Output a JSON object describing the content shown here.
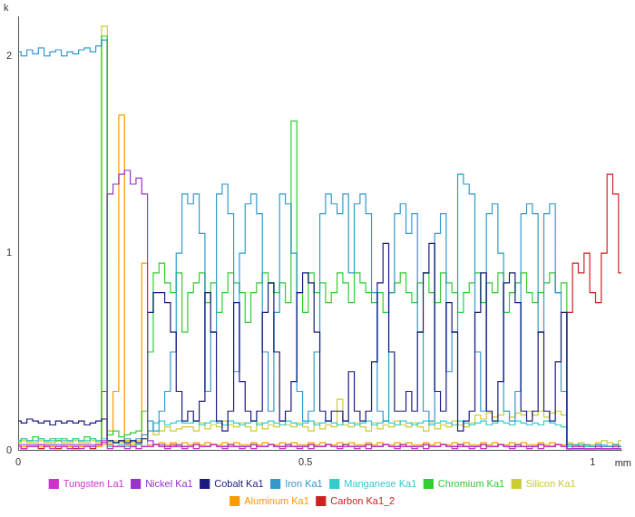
{
  "chart_data": {
    "type": "line",
    "line_style": "steps",
    "marker": "none",
    "x_label": "mm",
    "y_label": "k",
    "xlim": [
      0,
      1.05
    ],
    "xticks": [
      0,
      0.5,
      1
    ],
    "ylim": [
      0,
      2.2
    ],
    "yticks": [
      0,
      1,
      2
    ],
    "grid": false,
    "legend": "bottom",
    "x": [
      0,
      0.01,
      0.02,
      0.03,
      0.04,
      0.05,
      0.06,
      0.07,
      0.08,
      0.09,
      0.1,
      0.11,
      0.12,
      0.13,
      0.14,
      0.15,
      0.16,
      0.17,
      0.18,
      0.19,
      0.2,
      0.21,
      0.22,
      0.23,
      0.24,
      0.25,
      0.26,
      0.27,
      0.28,
      0.29,
      0.3,
      0.31,
      0.32,
      0.33,
      0.34,
      0.35,
      0.36,
      0.37,
      0.38,
      0.39,
      0.4,
      0.41,
      0.42,
      0.43,
      0.44,
      0.45,
      0.46,
      0.47,
      0.48,
      0.49,
      0.5,
      0.51,
      0.52,
      0.53,
      0.54,
      0.55,
      0.56,
      0.57,
      0.58,
      0.59,
      0.6,
      0.61,
      0.62,
      0.63,
      0.64,
      0.65,
      0.66,
      0.67,
      0.68,
      0.69,
      0.7,
      0.71,
      0.72,
      0.73,
      0.74,
      0.75,
      0.76,
      0.77,
      0.78,
      0.79,
      0.8,
      0.81,
      0.82,
      0.83,
      0.84,
      0.85,
      0.86,
      0.87,
      0.88,
      0.89,
      0.9,
      0.91,
      0.92,
      0.93,
      0.94,
      0.95,
      0.96,
      0.97,
      0.98,
      0.99,
      1,
      1.01,
      1.02,
      1.03,
      1.04,
      1.05
    ],
    "series": [
      {
        "name": "Tungsten La1",
        "color": "#cc33cc",
        "values": [
          0.02,
          0.01,
          0.02,
          0.02,
          0.03,
          0.02,
          0.01,
          0.02,
          0.02,
          0.01,
          0.02,
          0.01,
          0.02,
          0.02,
          0.03,
          0.05,
          0.01,
          0.02,
          0.02,
          0.01,
          0.02,
          0.01,
          0.02,
          0.02,
          0.03,
          0.02,
          0.01,
          0.02,
          0.02,
          0.01,
          0.02,
          0.01,
          0.02,
          0.02,
          0.03,
          0.02,
          0.01,
          0.02,
          0.02,
          0.01,
          0.02,
          0.01,
          0.02,
          0.02,
          0.03,
          0.02,
          0.01,
          0.02,
          0.02,
          0.01,
          0.02,
          0.01,
          0.02,
          0.02,
          0.03,
          0.02,
          0.01,
          0.02,
          0.02,
          0.01,
          0.02,
          0.01,
          0.02,
          0.02,
          0.03,
          0.02,
          0.01,
          0.02,
          0.02,
          0.01,
          0.02,
          0.01,
          0.02,
          0.02,
          0.03,
          0.02,
          0.01,
          0.02,
          0.02,
          0.01,
          0.02,
          0.01,
          0.02,
          0.02,
          0.03,
          0.02,
          0.01,
          0.02,
          0.02,
          0.01,
          0.02,
          0.01,
          0.02,
          0.02,
          0.03,
          0.02,
          0.01,
          0.02,
          0.02,
          0.01,
          0.01,
          0.02,
          0.01,
          0.01,
          0.02,
          0.01
        ]
      },
      {
        "name": "Nickel Ka1",
        "color": "#9933cc",
        "values": [
          0.03,
          0.03,
          0.03,
          0.03,
          0.03,
          0.03,
          0.03,
          0.03,
          0.03,
          0.03,
          0.03,
          0.03,
          0.03,
          0.03,
          0.03,
          0.04,
          1.3,
          1.35,
          1.4,
          1.42,
          1.35,
          1.38,
          1.3,
          0.05,
          0.03,
          0.03,
          0.02,
          0.02,
          0.03,
          0.02,
          0.02,
          0.03,
          0.02,
          0.02,
          0.03,
          0.02,
          0.02,
          0.03,
          0.02,
          0.02,
          0.02,
          0.03,
          0.02,
          0.02,
          0.03,
          0.02,
          0.02,
          0.03,
          0.02,
          0.02,
          0.02,
          0.03,
          0.02,
          0.02,
          0.03,
          0.02,
          0.02,
          0.03,
          0.02,
          0.02,
          0.02,
          0.03,
          0.02,
          0.02,
          0.03,
          0.02,
          0.02,
          0.03,
          0.02,
          0.02,
          0.02,
          0.03,
          0.02,
          0.02,
          0.03,
          0.02,
          0.02,
          0.03,
          0.02,
          0.02,
          0.02,
          0.03,
          0.02,
          0.02,
          0.03,
          0.02,
          0.02,
          0.03,
          0.02,
          0.02,
          0.02,
          0.03,
          0.02,
          0.02,
          0.03,
          0.02,
          0.01,
          0.01,
          0.01,
          0.01,
          0.01,
          0.01,
          0.01,
          0.01,
          0.01,
          0.01
        ]
      },
      {
        "name": "Cobalt Ka1",
        "color": "#1a1a80",
        "values": [
          0.15,
          0.14,
          0.16,
          0.15,
          0.14,
          0.15,
          0.13,
          0.15,
          0.14,
          0.15,
          0.14,
          0.15,
          0.13,
          0.14,
          0.15,
          0.16,
          0.05,
          0.04,
          0.05,
          0.04,
          0.05,
          0.04,
          0.06,
          0.7,
          0.8,
          0.8,
          0.75,
          0.6,
          0.3,
          0.15,
          0.2,
          0.15,
          0.25,
          0.8,
          0.6,
          0.15,
          0.1,
          0.2,
          0.75,
          0.35,
          0.2,
          0.15,
          0.2,
          0.7,
          0.85,
          0.5,
          0.15,
          0.2,
          0.35,
          0.8,
          0.9,
          0.85,
          0.6,
          0.2,
          0.15,
          0.2,
          0.2,
          0.15,
          0.4,
          0.2,
          0.15,
          0.2,
          0.45,
          0.85,
          1.05,
          0.5,
          0.2,
          0.2,
          0.3,
          0.2,
          0.6,
          0.9,
          1.05,
          0.3,
          0.2,
          0.75,
          0.6,
          0.1,
          0.15,
          0.2,
          0.7,
          0.9,
          0.2,
          0.15,
          0.35,
          0.85,
          0.9,
          0.75,
          0.2,
          0.15,
          0.2,
          0.6,
          0.2,
          0.15,
          0.45,
          0.7,
          0.01,
          0.01,
          0.01,
          0.01,
          0.01,
          0.01,
          0.01,
          0.01,
          0.01,
          0.01
        ]
      },
      {
        "name": "Iron Ka1",
        "color": "#3399cc",
        "values": [
          2.02,
          2.0,
          2.03,
          2.01,
          2.04,
          2.0,
          2.02,
          2.03,
          2.0,
          2.02,
          2.01,
          2.03,
          2.04,
          2.02,
          2.05,
          2.08,
          0.05,
          0.04,
          0.05,
          0.06,
          0.05,
          0.06,
          0.08,
          0.15,
          0.1,
          0.2,
          0.3,
          0.5,
          1.0,
          1.3,
          1.25,
          1.3,
          1.1,
          0.3,
          0.6,
          1.3,
          1.35,
          1.2,
          0.4,
          1.0,
          1.25,
          1.3,
          1.2,
          0.5,
          0.2,
          0.7,
          1.3,
          1.25,
          1.0,
          0.3,
          0.15,
          0.2,
          0.5,
          1.2,
          1.3,
          1.25,
          1.2,
          1.3,
          0.9,
          1.25,
          1.3,
          1.2,
          0.8,
          0.2,
          0.15,
          0.8,
          1.2,
          1.25,
          1.1,
          1.2,
          0.6,
          0.2,
          0.15,
          1.1,
          1.2,
          0.4,
          0.6,
          1.4,
          1.35,
          1.3,
          0.5,
          0.2,
          1.2,
          1.25,
          1.0,
          0.2,
          0.15,
          0.3,
          1.2,
          1.25,
          1.2,
          0.6,
          1.2,
          1.25,
          0.8,
          0.3,
          0.03,
          0.03,
          0.02,
          0.03,
          0.02,
          0.03,
          0.02,
          0.02,
          0.03,
          0.02
        ]
      },
      {
        "name": "Manganese Ka1",
        "color": "#33cccc",
        "values": [
          0.05,
          0.06,
          0.05,
          0.05,
          0.06,
          0.05,
          0.05,
          0.06,
          0.05,
          0.05,
          0.06,
          0.05,
          0.05,
          0.06,
          0.05,
          0.06,
          0.02,
          0.02,
          0.03,
          0.02,
          0.02,
          0.03,
          0.02,
          0.1,
          0.14,
          0.15,
          0.13,
          0.14,
          0.15,
          0.14,
          0.14,
          0.15,
          0.13,
          0.14,
          0.15,
          0.14,
          0.13,
          0.15,
          0.14,
          0.13,
          0.14,
          0.15,
          0.13,
          0.14,
          0.15,
          0.14,
          0.13,
          0.15,
          0.14,
          0.13,
          0.14,
          0.15,
          0.13,
          0.14,
          0.15,
          0.14,
          0.13,
          0.15,
          0.14,
          0.13,
          0.14,
          0.15,
          0.13,
          0.14,
          0.15,
          0.14,
          0.13,
          0.15,
          0.14,
          0.13,
          0.14,
          0.15,
          0.13,
          0.14,
          0.15,
          0.14,
          0.13,
          0.15,
          0.14,
          0.13,
          0.14,
          0.15,
          0.13,
          0.14,
          0.15,
          0.14,
          0.13,
          0.15,
          0.14,
          0.13,
          0.14,
          0.13,
          0.15,
          0.14,
          0.13,
          0.12,
          0.02,
          0.02,
          0.03,
          0.02,
          0.02,
          0.02,
          0.03,
          0.02,
          0.02,
          0.02
        ]
      },
      {
        "name": "Chromium Ka1",
        "color": "#33cc33",
        "values": [
          0.05,
          0.06,
          0.05,
          0.07,
          0.06,
          0.05,
          0.06,
          0.05,
          0.06,
          0.05,
          0.06,
          0.05,
          0.07,
          0.06,
          0.05,
          2.1,
          0.08,
          0.1,
          0.07,
          0.08,
          0.09,
          0.1,
          0.2,
          0.5,
          0.9,
          0.95,
          0.85,
          0.8,
          0.9,
          0.6,
          0.8,
          0.85,
          0.9,
          0.75,
          0.85,
          0.7,
          0.8,
          0.9,
          0.85,
          0.8,
          0.65,
          0.8,
          0.85,
          0.9,
          0.85,
          0.8,
          0.85,
          0.75,
          1.67,
          0.8,
          0.7,
          0.9,
          0.8,
          0.85,
          0.75,
          0.8,
          0.9,
          0.85,
          0.75,
          0.9,
          0.85,
          0.8,
          0.75,
          0.8,
          0.7,
          0.8,
          0.85,
          0.9,
          0.8,
          0.75,
          0.85,
          0.9,
          0.8,
          0.75,
          0.9,
          0.85,
          0.8,
          0.7,
          0.8,
          0.85,
          0.9,
          0.75,
          0.85,
          0.8,
          0.9,
          0.7,
          0.8,
          0.85,
          0.9,
          0.8,
          0.75,
          0.8,
          0.85,
          0.9,
          0.8,
          0.85,
          0.03,
          0.02,
          0.03,
          0.02,
          0.02,
          0.03,
          0.02,
          0.02,
          0.03,
          0.02
        ]
      },
      {
        "name": "Silicon Ka1",
        "color": "#cccc33",
        "values": [
          0.04,
          0.05,
          0.04,
          0.04,
          0.05,
          0.04,
          0.04,
          0.05,
          0.04,
          0.04,
          0.05,
          0.04,
          0.04,
          0.05,
          0.04,
          2.15,
          0.04,
          0.05,
          0.04,
          0.05,
          0.04,
          0.05,
          0.06,
          0.1,
          0.08,
          0.1,
          0.12,
          0.1,
          0.11,
          0.12,
          0.12,
          0.1,
          0.14,
          0.11,
          0.13,
          0.12,
          0.15,
          0.13,
          0.12,
          0.14,
          0.12,
          0.1,
          0.14,
          0.11,
          0.13,
          0.12,
          0.15,
          0.13,
          0.12,
          0.14,
          0.12,
          0.1,
          0.14,
          0.11,
          0.13,
          0.12,
          0.26,
          0.13,
          0.12,
          0.14,
          0.12,
          0.1,
          0.14,
          0.11,
          0.13,
          0.12,
          0.15,
          0.13,
          0.12,
          0.14,
          0.12,
          0.1,
          0.14,
          0.11,
          0.13,
          0.12,
          0.15,
          0.13,
          0.12,
          0.14,
          0.18,
          0.16,
          0.19,
          0.17,
          0.18,
          0.2,
          0.17,
          0.19,
          0.18,
          0.2,
          0.18,
          0.2,
          0.17,
          0.19,
          0.2,
          0.18,
          0.04,
          0.03,
          0.04,
          0.03,
          0.03,
          0.04,
          0.05,
          0.04,
          0.03,
          0.05
        ]
      },
      {
        "name": "Aluminum Ka1",
        "color": "#ff9900",
        "values": [
          0.02,
          0.02,
          0.02,
          0.02,
          0.02,
          0.02,
          0.02,
          0.02,
          0.02,
          0.02,
          0.02,
          0.02,
          0.02,
          0.02,
          0.02,
          0.03,
          0.1,
          0.3,
          1.7,
          0.05,
          0.03,
          0.03,
          0.95,
          0.03,
          0.03,
          0.04,
          0.03,
          0.04,
          0.03,
          0.04,
          0.03,
          0.04,
          0.03,
          0.04,
          0.03,
          0.03,
          0.04,
          0.03,
          0.04,
          0.03,
          0.03,
          0.04,
          0.03,
          0.04,
          0.03,
          0.03,
          0.04,
          0.03,
          0.04,
          0.03,
          0.03,
          0.04,
          0.03,
          0.04,
          0.03,
          0.03,
          0.04,
          0.03,
          0.04,
          0.03,
          0.03,
          0.04,
          0.03,
          0.04,
          0.03,
          0.03,
          0.04,
          0.03,
          0.04,
          0.03,
          0.03,
          0.04,
          0.03,
          0.04,
          0.03,
          0.03,
          0.04,
          0.03,
          0.04,
          0.03,
          0.03,
          0.04,
          0.03,
          0.04,
          0.03,
          0.03,
          0.04,
          0.03,
          0.04,
          0.03,
          0.03,
          0.04,
          0.03,
          0.04,
          0.03,
          0.03,
          0.02,
          0.02,
          0.02,
          0.02,
          0.02,
          0.02,
          0.02,
          0.02,
          0.02,
          0.02
        ]
      },
      {
        "name": "Carbon Ka1_2",
        "color": "#cc2222",
        "values": [
          0.02,
          0.01,
          0.02,
          0.02,
          0.01,
          0.02,
          0.02,
          0.01,
          0.02,
          0.02,
          0.01,
          0.02,
          0.02,
          0.01,
          0.02,
          0.3,
          0.03,
          0.02,
          0.02,
          0.03,
          0.02,
          0.03,
          0.02,
          0.02,
          0.03,
          0.02,
          0.02,
          0.03,
          0.02,
          0.02,
          0.02,
          0.03,
          0.02,
          0.02,
          0.03,
          0.02,
          0.02,
          0.03,
          0.02,
          0.02,
          0.02,
          0.03,
          0.02,
          0.02,
          0.03,
          0.02,
          0.02,
          0.03,
          0.02,
          0.02,
          0.02,
          0.03,
          0.02,
          0.02,
          0.03,
          0.02,
          0.02,
          0.03,
          0.02,
          0.02,
          0.02,
          0.03,
          0.02,
          0.02,
          0.03,
          0.02,
          0.02,
          0.03,
          0.02,
          0.02,
          0.02,
          0.03,
          0.02,
          0.02,
          0.03,
          0.02,
          0.02,
          0.03,
          0.02,
          0.02,
          0.02,
          0.03,
          0.02,
          0.02,
          0.03,
          0.02,
          0.02,
          0.03,
          0.02,
          0.02,
          0.02,
          0.03,
          0.02,
          0.02,
          0.03,
          0.02,
          0.7,
          0.95,
          0.9,
          1.0,
          0.8,
          0.75,
          1.0,
          1.4,
          1.3,
          0.9
        ]
      }
    ]
  }
}
